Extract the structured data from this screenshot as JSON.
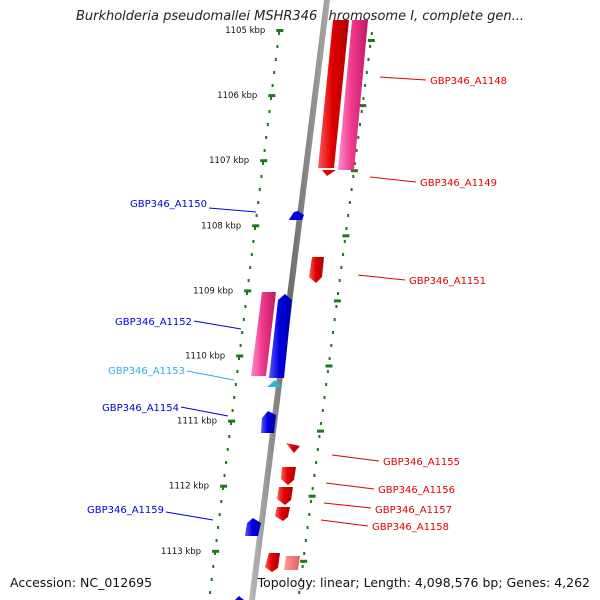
{
  "header": {
    "title": "Burkholderia pseudomallei MSHR346 chromosome I, complete gen..."
  },
  "footer": {
    "accession": "Accession: NC_012695",
    "summary": "Topology: linear; Length: 4,098,576 bp; Genes: 4,262"
  },
  "colors": {
    "forward_gene": "#e00000",
    "forward_gene_alt": "#ee3a8c",
    "reverse_gene": "#0000e0",
    "highlight_gene": "#27b5e0",
    "tick": "#1a7a1a",
    "backbone": "#888888"
  },
  "scale": {
    "unit": "kbp",
    "ticks": [
      "1105 kbp",
      "1106 kbp",
      "1107 kbp",
      "1108 kbp",
      "1109 kbp",
      "1110 kbp",
      "1111 kbp",
      "1112 kbp",
      "1113 kbp"
    ]
  },
  "genes": [
    {
      "id": "GBP346_A1148",
      "strand": "forward",
      "color": "red"
    },
    {
      "id": "GBP346_A1149",
      "strand": "forward",
      "color": "red"
    },
    {
      "id": "GBP346_A1150",
      "strand": "reverse",
      "color": "blue"
    },
    {
      "id": "GBP346_A1151",
      "strand": "forward",
      "color": "red"
    },
    {
      "id": "GBP346_A1152",
      "strand": "reverse",
      "color": "blue"
    },
    {
      "id": "GBP346_A1153",
      "strand": "reverse",
      "color": "light-blue"
    },
    {
      "id": "GBP346_A1154",
      "strand": "reverse",
      "color": "blue"
    },
    {
      "id": "GBP346_A1155",
      "strand": "forward",
      "color": "red"
    },
    {
      "id": "GBP346_A1156",
      "strand": "forward",
      "color": "red"
    },
    {
      "id": "GBP346_A1157",
      "strand": "forward",
      "color": "red"
    },
    {
      "id": "GBP346_A1158",
      "strand": "forward",
      "color": "red"
    },
    {
      "id": "GBP346_A1159",
      "strand": "reverse",
      "color": "blue"
    }
  ]
}
